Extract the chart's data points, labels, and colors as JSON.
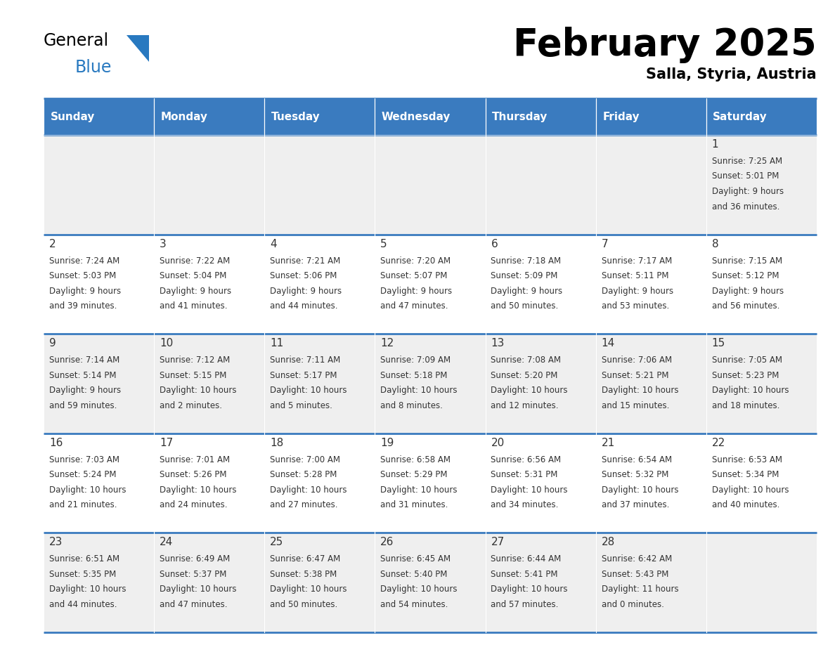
{
  "title": "February 2025",
  "subtitle": "Salla, Styria, Austria",
  "header_bg": "#3a7bbf",
  "header_text": "#ffffff",
  "days_of_week": [
    "Sunday",
    "Monday",
    "Tuesday",
    "Wednesday",
    "Thursday",
    "Friday",
    "Saturday"
  ],
  "row_bg_odd": "#efefef",
  "row_bg_even": "#ffffff",
  "day_num_color": "#333333",
  "info_color": "#333333",
  "border_color": "#3a7bbf",
  "calendar_data": [
    [
      null,
      null,
      null,
      null,
      null,
      null,
      {
        "day": "1",
        "sunrise": "7:25 AM",
        "sunset": "5:01 PM",
        "daylight_h": "9 hours",
        "daylight_m": "and 36 minutes."
      }
    ],
    [
      {
        "day": "2",
        "sunrise": "7:24 AM",
        "sunset": "5:03 PM",
        "daylight_h": "9 hours",
        "daylight_m": "and 39 minutes."
      },
      {
        "day": "3",
        "sunrise": "7:22 AM",
        "sunset": "5:04 PM",
        "daylight_h": "9 hours",
        "daylight_m": "and 41 minutes."
      },
      {
        "day": "4",
        "sunrise": "7:21 AM",
        "sunset": "5:06 PM",
        "daylight_h": "9 hours",
        "daylight_m": "and 44 minutes."
      },
      {
        "day": "5",
        "sunrise": "7:20 AM",
        "sunset": "5:07 PM",
        "daylight_h": "9 hours",
        "daylight_m": "and 47 minutes."
      },
      {
        "day": "6",
        "sunrise": "7:18 AM",
        "sunset": "5:09 PM",
        "daylight_h": "9 hours",
        "daylight_m": "and 50 minutes."
      },
      {
        "day": "7",
        "sunrise": "7:17 AM",
        "sunset": "5:11 PM",
        "daylight_h": "9 hours",
        "daylight_m": "and 53 minutes."
      },
      {
        "day": "8",
        "sunrise": "7:15 AM",
        "sunset": "5:12 PM",
        "daylight_h": "9 hours",
        "daylight_m": "and 56 minutes."
      }
    ],
    [
      {
        "day": "9",
        "sunrise": "7:14 AM",
        "sunset": "5:14 PM",
        "daylight_h": "9 hours",
        "daylight_m": "and 59 minutes."
      },
      {
        "day": "10",
        "sunrise": "7:12 AM",
        "sunset": "5:15 PM",
        "daylight_h": "10 hours",
        "daylight_m": "and 2 minutes."
      },
      {
        "day": "11",
        "sunrise": "7:11 AM",
        "sunset": "5:17 PM",
        "daylight_h": "10 hours",
        "daylight_m": "and 5 minutes."
      },
      {
        "day": "12",
        "sunrise": "7:09 AM",
        "sunset": "5:18 PM",
        "daylight_h": "10 hours",
        "daylight_m": "and 8 minutes."
      },
      {
        "day": "13",
        "sunrise": "7:08 AM",
        "sunset": "5:20 PM",
        "daylight_h": "10 hours",
        "daylight_m": "and 12 minutes."
      },
      {
        "day": "14",
        "sunrise": "7:06 AM",
        "sunset": "5:21 PM",
        "daylight_h": "10 hours",
        "daylight_m": "and 15 minutes."
      },
      {
        "day": "15",
        "sunrise": "7:05 AM",
        "sunset": "5:23 PM",
        "daylight_h": "10 hours",
        "daylight_m": "and 18 minutes."
      }
    ],
    [
      {
        "day": "16",
        "sunrise": "7:03 AM",
        "sunset": "5:24 PM",
        "daylight_h": "10 hours",
        "daylight_m": "and 21 minutes."
      },
      {
        "day": "17",
        "sunrise": "7:01 AM",
        "sunset": "5:26 PM",
        "daylight_h": "10 hours",
        "daylight_m": "and 24 minutes."
      },
      {
        "day": "18",
        "sunrise": "7:00 AM",
        "sunset": "5:28 PM",
        "daylight_h": "10 hours",
        "daylight_m": "and 27 minutes."
      },
      {
        "day": "19",
        "sunrise": "6:58 AM",
        "sunset": "5:29 PM",
        "daylight_h": "10 hours",
        "daylight_m": "and 31 minutes."
      },
      {
        "day": "20",
        "sunrise": "6:56 AM",
        "sunset": "5:31 PM",
        "daylight_h": "10 hours",
        "daylight_m": "and 34 minutes."
      },
      {
        "day": "21",
        "sunrise": "6:54 AM",
        "sunset": "5:32 PM",
        "daylight_h": "10 hours",
        "daylight_m": "and 37 minutes."
      },
      {
        "day": "22",
        "sunrise": "6:53 AM",
        "sunset": "5:34 PM",
        "daylight_h": "10 hours",
        "daylight_m": "and 40 minutes."
      }
    ],
    [
      {
        "day": "23",
        "sunrise": "6:51 AM",
        "sunset": "5:35 PM",
        "daylight_h": "10 hours",
        "daylight_m": "and 44 minutes."
      },
      {
        "day": "24",
        "sunrise": "6:49 AM",
        "sunset": "5:37 PM",
        "daylight_h": "10 hours",
        "daylight_m": "and 47 minutes."
      },
      {
        "day": "25",
        "sunrise": "6:47 AM",
        "sunset": "5:38 PM",
        "daylight_h": "10 hours",
        "daylight_m": "and 50 minutes."
      },
      {
        "day": "26",
        "sunrise": "6:45 AM",
        "sunset": "5:40 PM",
        "daylight_h": "10 hours",
        "daylight_m": "and 54 minutes."
      },
      {
        "day": "27",
        "sunrise": "6:44 AM",
        "sunset": "5:41 PM",
        "daylight_h": "10 hours",
        "daylight_m": "and 57 minutes."
      },
      {
        "day": "28",
        "sunrise": "6:42 AM",
        "sunset": "5:43 PM",
        "daylight_h": "11 hours",
        "daylight_m": "and 0 minutes."
      },
      null
    ]
  ]
}
